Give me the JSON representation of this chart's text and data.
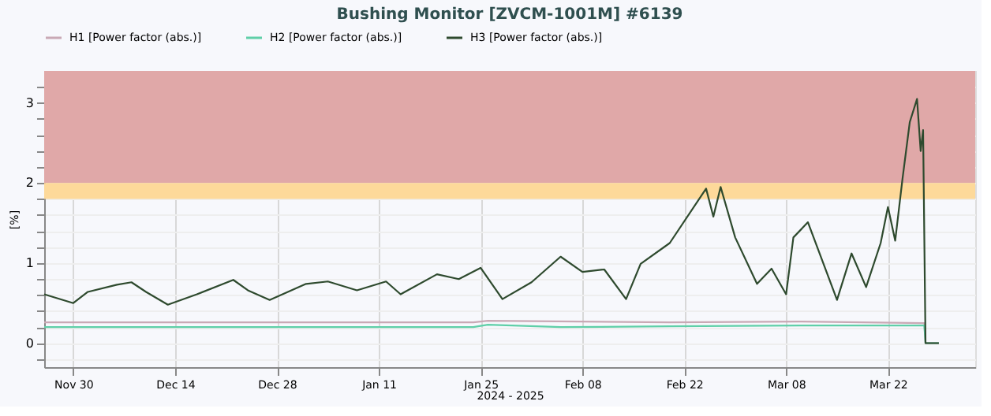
{
  "chart_data": {
    "type": "line",
    "title": "Bushing Monitor [ZVCM-1001M] #6139",
    "xlabel": "2024 - 2025",
    "ylabel": "[%]",
    "xlim": [
      "2024-11-26",
      "2025-04-03"
    ],
    "xticks": [
      {
        "value": "2024-11-30",
        "label": "Nov 30"
      },
      {
        "value": "2024-12-14",
        "label": "Dec 14"
      },
      {
        "value": "2024-12-28",
        "label": "Dec 28"
      },
      {
        "value": "2025-01-11",
        "label": "Jan 11"
      },
      {
        "value": "2025-01-25",
        "label": "Jan 25"
      },
      {
        "value": "2025-02-08",
        "label": "Feb 08"
      },
      {
        "value": "2025-02-22",
        "label": "Feb 22"
      },
      {
        "value": "2025-03-08",
        "label": "Mar 08"
      },
      {
        "value": "2025-03-22",
        "label": "Mar 22"
      }
    ],
    "ylim": [
      -0.3,
      3.4
    ],
    "yticks": [
      {
        "value": -0.2,
        "label": null
      },
      0,
      {
        "value": 0.2,
        "label": null
      },
      {
        "value": 0.4,
        "label": null
      },
      {
        "value": 0.6,
        "label": null
      },
      {
        "value": 0.8,
        "label": null
      },
      1,
      {
        "value": 1.2,
        "label": null
      },
      {
        "value": 1.4,
        "label": null
      },
      {
        "value": 1.6,
        "label": null
      },
      {
        "value": 1.8,
        "label": null
      },
      2,
      {
        "value": 2.2,
        "label": null
      },
      {
        "value": 2.4,
        "label": null
      },
      {
        "value": 2.6,
        "label": null
      },
      {
        "value": 2.8,
        "label": null
      },
      3,
      {
        "value": 3.2,
        "label": null
      }
    ],
    "grid": true,
    "legend": "top",
    "line_style": "solid",
    "marker": "none",
    "bands": [
      {
        "axis": "y",
        "from": 2,
        "to": 3.4,
        "color": "#e0a8a8"
      },
      {
        "axis": "y",
        "from": 1.8,
        "to": 2,
        "color": "#fdd99a"
      }
    ],
    "series": [
      {
        "name": "H1 [Power factor (abs.)]",
        "color": "#c9a9b5",
        "x": [
          "2024-11-26",
          "2025-01-24",
          "2025-01-26",
          "2025-02-20",
          "2025-03-10",
          "2025-03-27",
          "2025-03-27T04:00",
          "2025-03-29"
        ],
        "values": [
          0.26,
          0.26,
          0.28,
          0.26,
          0.27,
          0.25,
          0,
          0
        ]
      },
      {
        "name": "H2 [Power factor (abs.)]",
        "color": "#5fcfa8",
        "x": [
          "2024-11-26",
          "2025-01-24",
          "2025-01-26",
          "2025-02-05",
          "2025-02-20",
          "2025-03-10",
          "2025-03-27",
          "2025-03-27T04:00",
          "2025-03-29"
        ],
        "values": [
          0.2,
          0.2,
          0.23,
          0.2,
          0.21,
          0.22,
          0.22,
          0,
          0
        ]
      },
      {
        "name": "H3 [Power factor (abs.)]",
        "color": "#2e4a2e",
        "x": [
          "2024-11-26",
          "2024-11-30",
          "2024-12-02",
          "2024-12-06",
          "2024-12-08",
          "2024-12-10",
          "2024-12-13",
          "2024-12-17",
          "2024-12-22",
          "2024-12-24",
          "2024-12-27",
          "2025-01-01",
          "2025-01-04",
          "2025-01-08",
          "2025-01-12",
          "2025-01-14",
          "2025-01-19",
          "2025-01-22",
          "2025-01-25",
          "2025-01-28",
          "2025-02-01",
          "2025-02-05",
          "2025-02-08",
          "2025-02-11",
          "2025-02-14",
          "2025-02-16",
          "2025-02-20",
          "2025-02-25",
          "2025-02-26",
          "2025-02-27",
          "2025-03-01",
          "2025-03-04",
          "2025-03-06",
          "2025-03-08",
          "2025-03-09",
          "2025-03-11",
          "2025-03-15",
          "2025-03-17",
          "2025-03-19",
          "2025-03-21",
          "2025-03-22",
          "2025-03-23",
          "2025-03-24",
          "2025-03-25",
          "2025-03-26",
          "2025-03-26T12:00",
          "2025-03-26T20:00",
          "2025-03-27T04:00",
          "2025-03-29"
        ],
        "values": [
          0.61,
          0.5,
          0.64,
          0.73,
          0.76,
          0.64,
          0.48,
          0.61,
          0.79,
          0.66,
          0.54,
          0.74,
          0.77,
          0.66,
          0.77,
          0.61,
          0.86,
          0.8,
          0.94,
          0.55,
          0.76,
          1.08,
          0.89,
          0.92,
          0.55,
          0.99,
          1.25,
          1.93,
          1.58,
          1.95,
          1.32,
          0.74,
          0.93,
          0.61,
          1.32,
          1.51,
          0.54,
          1.12,
          0.7,
          1.25,
          1.7,
          1.28,
          2.05,
          2.76,
          3.05,
          2.4,
          2.66,
          0,
          0
        ]
      }
    ]
  }
}
